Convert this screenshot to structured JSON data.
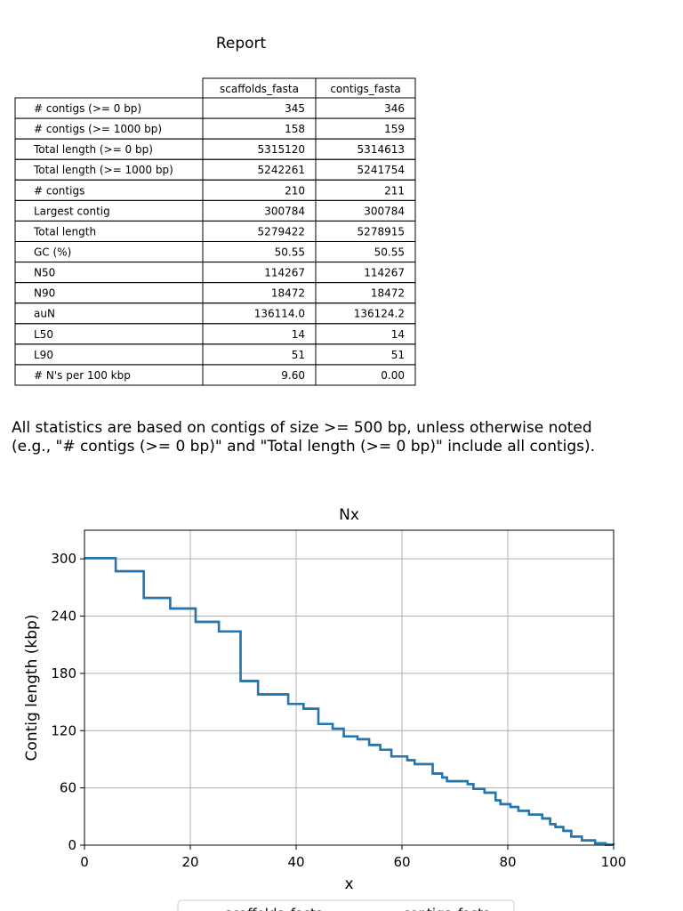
{
  "report_title": "Report",
  "table": {
    "columns": [
      "scaffolds_fasta",
      "contigs_fasta"
    ],
    "rows": [
      [
        "# contigs (>= 0 bp)",
        "345",
        "346"
      ],
      [
        "# contigs (>= 1000 bp)",
        "158",
        "159"
      ],
      [
        "Total length (>= 0 bp)",
        "5315120",
        "5314613"
      ],
      [
        "Total length (>= 1000 bp)",
        "5242261",
        "5241754"
      ],
      [
        "# contigs",
        "210",
        "211"
      ],
      [
        "Largest contig",
        "300784",
        "300784"
      ],
      [
        "Total length",
        "5279422",
        "5278915"
      ],
      [
        "GC (%)",
        "50.55",
        "50.55"
      ],
      [
        "N50",
        "114267",
        "114267"
      ],
      [
        "N90",
        "18472",
        "18472"
      ],
      [
        "auN",
        "136114.0",
        "136124.2"
      ],
      [
        "L50",
        "14",
        "14"
      ],
      [
        "L90",
        "51",
        "51"
      ],
      [
        "# N's per 100 kbp",
        "9.60",
        "0.00"
      ]
    ]
  },
  "note": [
    "All statistics are based on contigs of size >= 500 bp, unless otherwise noted",
    "(e.g., \"# contigs (>= 0 bp)\" and \"Total length (>= 0 bp)\" include all contigs)."
  ],
  "chart_data": {
    "type": "line",
    "step": "post",
    "title": "Nx",
    "xlabel": "x",
    "ylabel": "Contig length (kbp)",
    "x": [
      0,
      5.9,
      11.2,
      16.2,
      21,
      25.4,
      29.5,
      32.8,
      38.5,
      41.4,
      44.2,
      46.9,
      49,
      51.6,
      53.8,
      55.9,
      58,
      61,
      62.4,
      65.8,
      67.6,
      68.5,
      72.4,
      73.5,
      75.6,
      77.7,
      78.6,
      80.5,
      82,
      84,
      86.5,
      88,
      89,
      90.5,
      92,
      94,
      96.5,
      98.5,
      100
    ],
    "series": [
      {
        "name": "scaffolds_fasta",
        "color": "#1f77b4",
        "values": [
          300.8,
          287,
          259,
          248,
          234,
          224,
          172,
          158,
          148,
          143,
          127,
          122,
          114,
          111,
          105,
          100,
          93,
          89,
          85,
          75,
          71,
          67,
          64,
          59,
          55,
          47,
          43,
          40,
          36,
          32,
          28,
          22,
          19,
          15,
          9,
          5,
          2,
          0.5,
          0
        ]
      },
      {
        "name": "contigs_fasta",
        "color": "#ff7f0e",
        "values": [
          300.8,
          287,
          259,
          248,
          234,
          224,
          172,
          158,
          148,
          143,
          127,
          122,
          114,
          111,
          105,
          100,
          93,
          89,
          85,
          75,
          71,
          67,
          64,
          59,
          55,
          47,
          43,
          40,
          36,
          32,
          28,
          22,
          19,
          15,
          9,
          5,
          2,
          0.5,
          0
        ]
      }
    ],
    "xlim": [
      0,
      100
    ],
    "xticks": [
      0,
      20,
      40,
      60,
      80,
      100
    ],
    "ylim": [
      0,
      330
    ],
    "yticks": [
      0,
      60,
      120,
      180,
      240,
      300
    ],
    "grid": true,
    "legend": "bottom"
  }
}
